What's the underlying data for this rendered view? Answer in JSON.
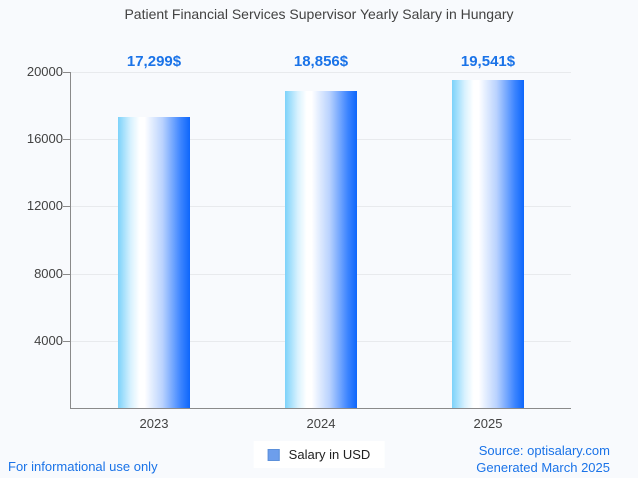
{
  "title": "Patient Financial Services Supervisor Yearly Salary in Hungary",
  "legend": {
    "label": "Salary in USD",
    "swatch_color": "#6d9eec"
  },
  "footer": {
    "disclaimer": "For informational use only",
    "source": "Source: optisalary.com",
    "generated": "Generated March 2025"
  },
  "colors": {
    "background": "#f8fafd",
    "title_text": "#424242",
    "axis": "#8a8a8a",
    "gridline": "#e8eaed",
    "value_label": "#1a73e8",
    "footer_link": "#1a73e8",
    "bar_gradient_left": "#7cd2fa",
    "bar_gradient_middle": "#ffffff",
    "bar_gradient_right": "#0d66fb"
  },
  "chart_data": {
    "type": "bar",
    "title": "Patient Financial Services Supervisor Yearly Salary in Hungary",
    "categories": [
      "2023",
      "2024",
      "2025"
    ],
    "series": [
      {
        "name": "Salary in USD",
        "values": [
          17299,
          18856,
          19541
        ]
      }
    ],
    "value_labels": [
      "17,299$",
      "18,856$",
      "19,541$"
    ],
    "xlabel": "",
    "ylabel": "",
    "ylim": [
      0,
      20000
    ],
    "yticks": [
      4000,
      8000,
      12000,
      16000,
      20000
    ],
    "grid": true,
    "legend_position": "bottom"
  }
}
